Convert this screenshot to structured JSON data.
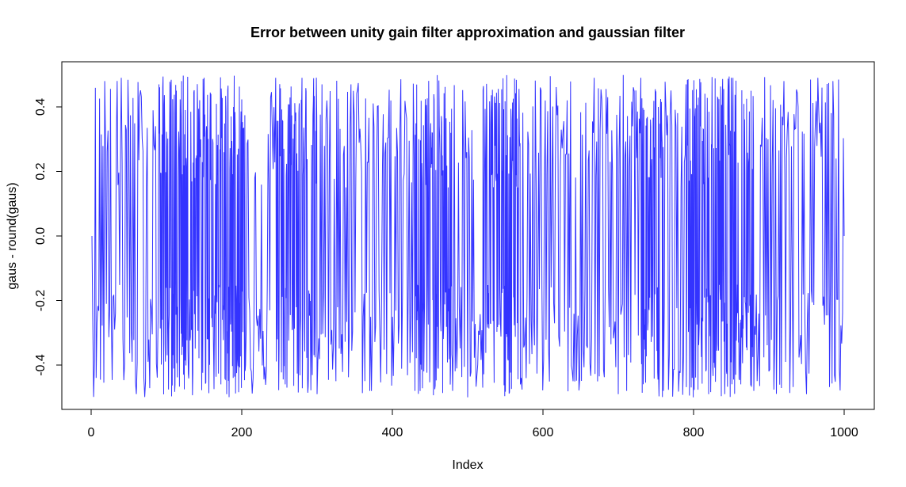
{
  "chart_data": {
    "type": "line",
    "title": "Error between unity gain filter approximation and gaussian filter",
    "xlabel": "Index",
    "ylabel": "gaus - round(gaus)",
    "xlim": [
      0,
      1000
    ],
    "ylim": [
      -0.5,
      0.5
    ],
    "x_ticks": [
      0,
      200,
      400,
      600,
      800,
      1000
    ],
    "x_tick_labels": [
      "0",
      "200",
      "400",
      "600",
      "800",
      "1000"
    ],
    "y_ticks": [
      -0.4,
      -0.2,
      0.0,
      0.2,
      0.4
    ],
    "y_tick_labels": [
      "-0.4",
      "-0.2",
      "0.0",
      "0.2",
      "0.4"
    ],
    "grid": false,
    "legend": "none",
    "series_color": "#3333ff",
    "series": [
      {
        "x": [
          1,
          18,
          40,
          60,
          90,
          120,
          150,
          180,
          205,
          215,
          245,
          260,
          280,
          300,
          313,
          325,
          345,
          370,
          398,
          430,
          460,
          480,
          500,
          520,
          542,
          570,
          603,
          640,
          668,
          686,
          700,
          730,
          760,
          790,
          820,
          850,
          880,
          920,
          950,
          965,
          985,
          1000
        ],
        "y": [
          0.0,
          0.48,
          0.49,
          -0.49,
          0.47,
          0.48,
          0.49,
          -0.49,
          -0.4,
          -0.44,
          0.49,
          -0.47,
          0.49,
          -0.49,
          0.42,
          -0.45,
          0.47,
          -0.48,
          0.42,
          -0.48,
          0.03,
          -0.48,
          -0.5,
          -0.47,
          0.03,
          -0.46,
          0.42,
          -0.45,
          0.49,
          0.43,
          -0.49,
          0.49,
          -0.48,
          0.47,
          -0.49,
          0.49,
          -0.48,
          0.48,
          -0.49,
          0.49,
          0.48,
          0.0
        ]
      }
    ]
  }
}
